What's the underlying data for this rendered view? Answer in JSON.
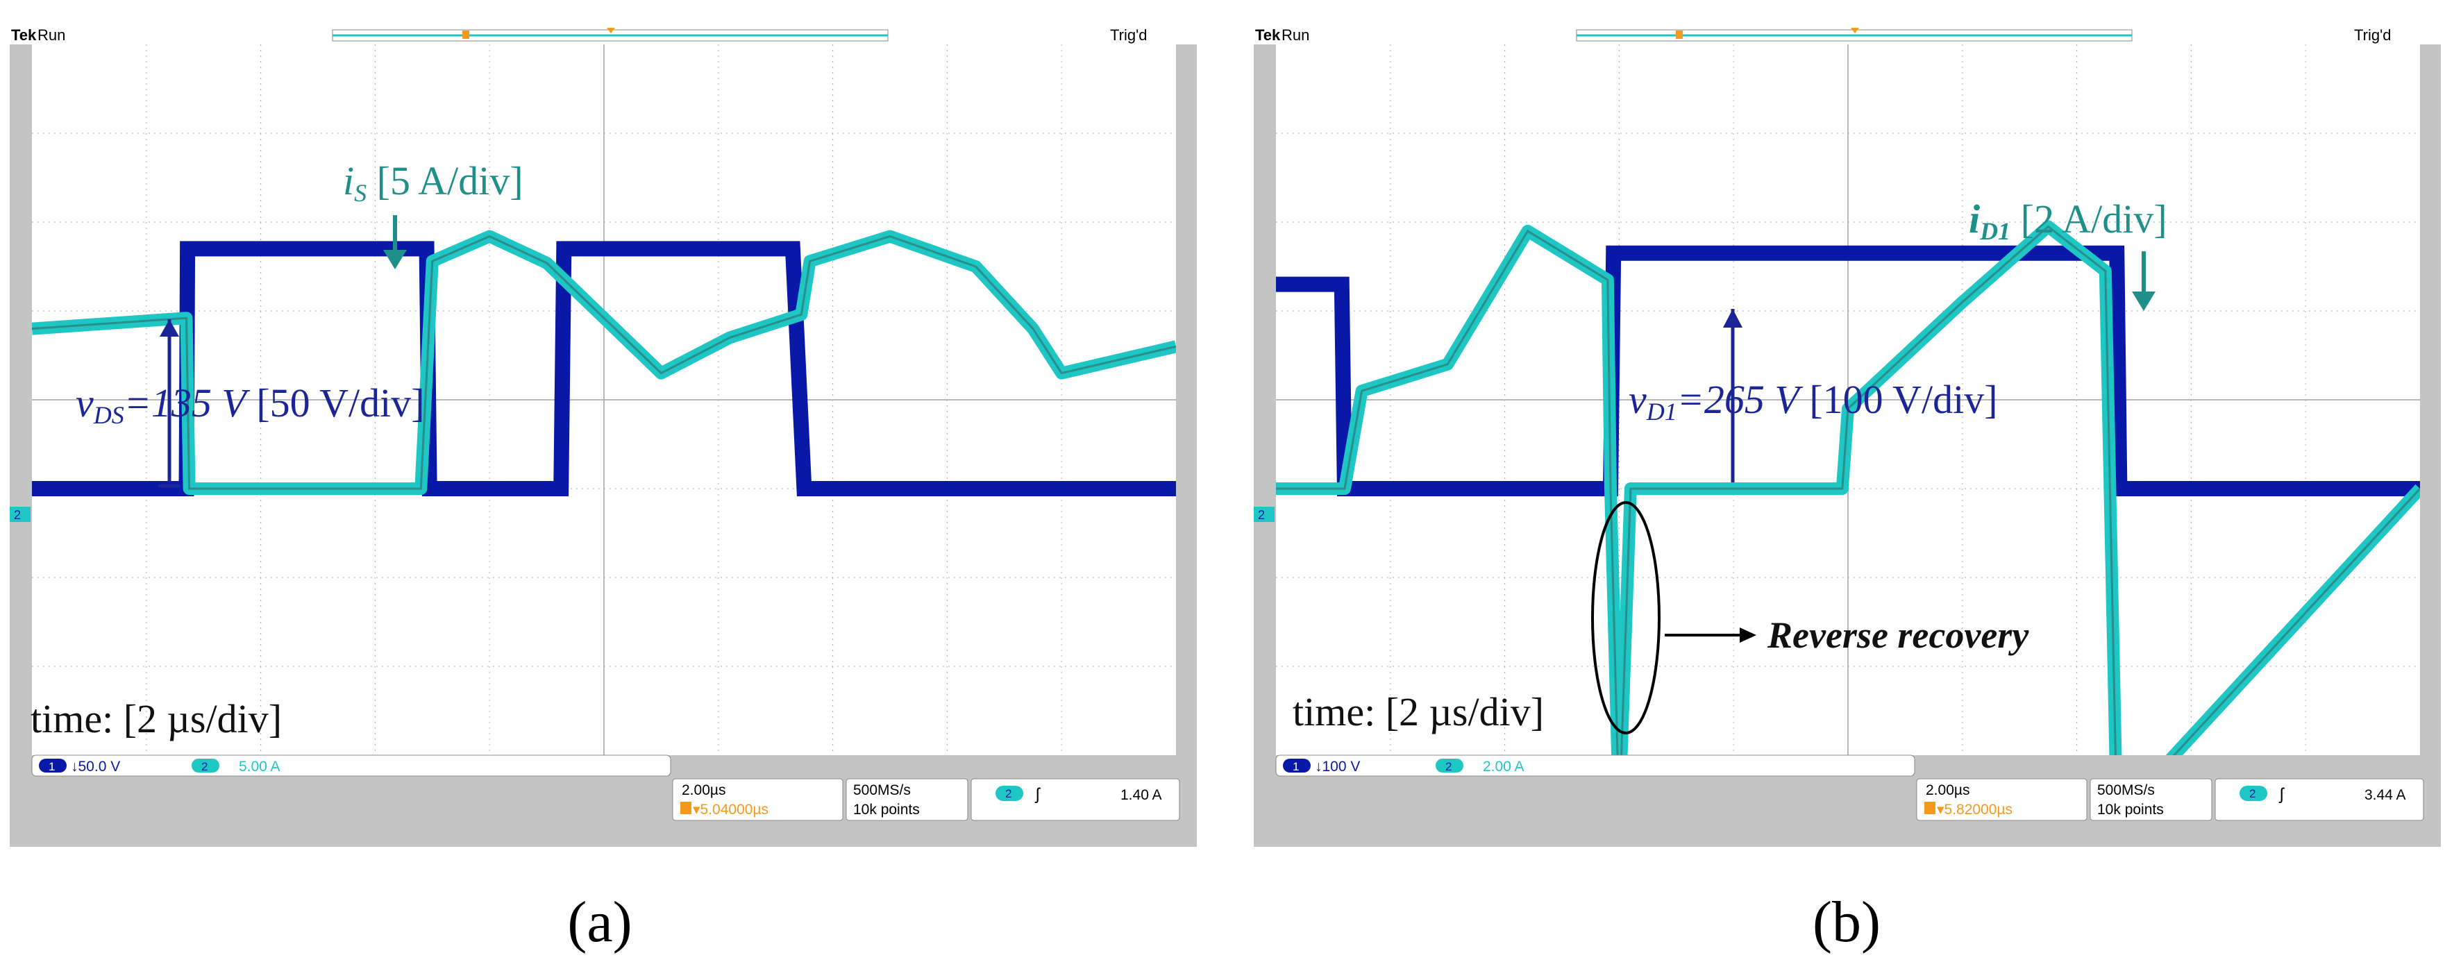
{
  "figure": {
    "panels": [
      {
        "id": "a",
        "panel_label": "(a)",
        "status_brand": "Tek",
        "status_run": "Run",
        "status_trig": "Trig'd",
        "time_annotation": "time: [2 µs/div]",
        "ch1_num": "1",
        "ch1_scale": "↓50.0 V",
        "ch2_num": "2",
        "ch2_scale": "5.00 A",
        "timebase": "2.00µs",
        "trig_position": "▾5.04000µs",
        "sample_rate": "500MS/s",
        "record_length": "10k points",
        "trig_source": "2",
        "trig_slope": "ʃ",
        "trig_level": "1.40 A",
        "ann_current_sym": "i",
        "ann_current_sub": "S",
        "ann_current_scale": " [5 A/div]",
        "ann_voltage_sym": "v",
        "ann_voltage_sub": "DS",
        "ann_voltage_eq": "=135 V",
        "ann_voltage_scale": " [50 V/div]",
        "colors": {
          "voltage": "#0a18a8",
          "current": "#1ec7c4",
          "annotation_current": "#1f8f8a",
          "annotation_voltage": "#1b2596"
        }
      },
      {
        "id": "b",
        "panel_label": "(b)",
        "status_brand": "Tek",
        "status_run": "Run",
        "status_trig": "Trig'd",
        "time_annotation": "time: [2 µs/div]",
        "ch1_num": "1",
        "ch1_scale": "↓100 V",
        "ch2_num": "2",
        "ch2_scale": "2.00 A",
        "timebase": "2.00µs",
        "trig_position": "▾5.82000µs",
        "sample_rate": "500MS/s",
        "record_length": "10k points",
        "trig_source": "2",
        "trig_slope": "ʃ",
        "trig_level": "3.44 A",
        "ann_current_sym": "i",
        "ann_current_sub": "D1",
        "ann_current_scale": " [2 A/div]",
        "ann_voltage_sym": "v",
        "ann_voltage_sub": "D1",
        "ann_voltage_eq": "=265 V",
        "ann_voltage_scale": " [100 V/div]",
        "reverse_recovery_label": "Reverse recovery",
        "colors": {
          "voltage": "#0a18a8",
          "current": "#1ec7c4",
          "annotation_current": "#1f8f8a",
          "annotation_voltage": "#1b2596"
        }
      }
    ]
  },
  "chart_data": [
    {
      "type": "line",
      "xlabel": "time: [2 µs/div]",
      "x_unit": "µs",
      "xlim": [
        0,
        20
      ],
      "series": [
        {
          "name": "vDS",
          "unit": "V",
          "scale_per_div": 50,
          "x": [
            0,
            2.7,
            2.72,
            6.9,
            6.95,
            9.1,
            9.25,
            9.3,
            13.3,
            13.5,
            15.6,
            17.8,
            18.0,
            20
          ],
          "y": [
            0,
            0,
            135,
            135,
            0,
            0,
            0,
            135,
            135,
            0,
            0,
            0,
            0,
            0
          ]
        },
        {
          "name": "iS",
          "unit": "A",
          "scale_per_div": 5,
          "x": [
            0,
            2.7,
            2.75,
            6.8,
            7.0,
            8.0,
            9.0,
            10.0,
            11.0,
            12.2,
            13.45,
            13.6,
            15.0,
            16.5,
            17.5,
            18.0,
            20
          ],
          "y": [
            9,
            9.6,
            0,
            0,
            12.8,
            14.2,
            12.7,
            9.6,
            6.5,
            8.5,
            9.8,
            12.8,
            14.2,
            12.5,
            9,
            6.5,
            8
          ]
        }
      ]
    },
    {
      "type": "line",
      "xlabel": "time: [2 µs/div]",
      "x_unit": "µs",
      "xlim": [
        0,
        20
      ],
      "series": [
        {
          "name": "vD1",
          "unit": "V",
          "scale_per_div": 100,
          "x": [
            0,
            1.15,
            1.2,
            2.8,
            2.9,
            5.85,
            5.9,
            14.7,
            14.75,
            20
          ],
          "y": [
            230,
            230,
            0,
            0,
            0,
            0,
            265,
            265,
            0,
            0
          ]
        },
        {
          "name": "iD1",
          "unit": "A",
          "scale_per_div": 2,
          "x": [
            0,
            1.2,
            1.5,
            3.0,
            4.4,
            5.8,
            5.85,
            6.0,
            6.2,
            7.8,
            9.9,
            10.0,
            12.0,
            13.5,
            14.5,
            14.7,
            20
          ],
          "y": [
            0,
            0,
            2.2,
            2.8,
            5.8,
            4.7,
            0,
            -7.4,
            0,
            0,
            0,
            1.8,
            4.2,
            5.9,
            4.9,
            -7.4,
            0
          ]
        }
      ]
    }
  ]
}
